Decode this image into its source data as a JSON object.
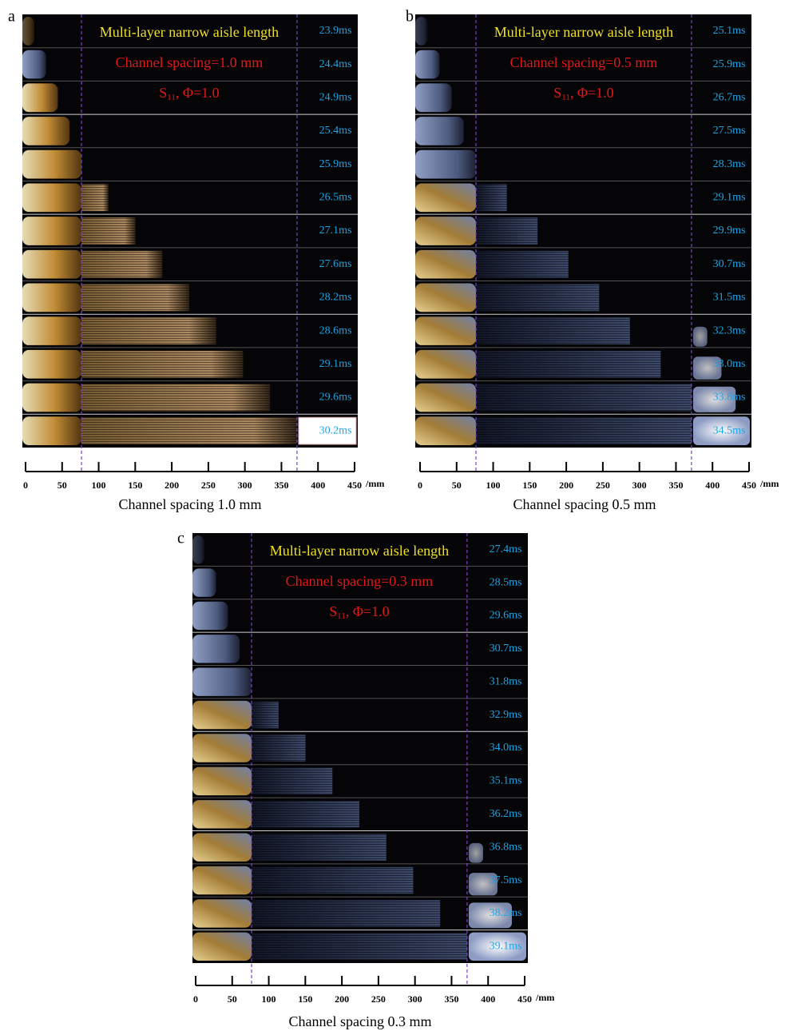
{
  "panels": [
    {
      "label": "a",
      "title": "Multi-layer narrow aisle length",
      "spacing": "Channel spacing=1.0 mm",
      "condition": {
        "symbol": "S",
        "subscript": "11",
        "rest": ", Φ=1.0"
      },
      "times": [
        "23.9ms",
        "24.4ms",
        "24.9ms",
        "25.4ms",
        "25.9ms",
        "26.5ms",
        "27.1ms",
        "27.6ms",
        "28.2ms",
        "28.6ms",
        "29.1ms",
        "29.6ms",
        "30.2ms"
      ],
      "axis": {
        "ticks": [
          0,
          50,
          100,
          150,
          200,
          250,
          300,
          350,
          400,
          450
        ],
        "unit": "/mm"
      },
      "caption": "Channel spacing 1.0 mm"
    },
    {
      "label": "b",
      "title": "Multi-layer narrow aisle length",
      "spacing": "Channel spacing=0.5 mm",
      "condition": {
        "symbol": "S",
        "subscript": "11",
        "rest": ", Φ=1.0"
      },
      "times": [
        "25.1ms",
        "25.9ms",
        "26.7ms",
        "27.5ms",
        "28.3ms",
        "29.1ms",
        "29.9ms",
        "30.7ms",
        "31.5ms",
        "32.3ms",
        "33.0ms",
        "33.8ms",
        "34.5ms"
      ],
      "axis": {
        "ticks": [
          0,
          50,
          100,
          150,
          200,
          250,
          300,
          350,
          400,
          450
        ],
        "unit": "/mm"
      },
      "caption": "Channel spacing 0.5 mm"
    },
    {
      "label": "c",
      "title": "Multi-layer narrow aisle length",
      "spacing": "Channel spacing=0.3 mm",
      "condition": {
        "symbol": "S",
        "subscript": "11",
        "rest": ", Φ=1.0"
      },
      "times": [
        "27.4ms",
        "28.5ms",
        "29.6ms",
        "30.7ms",
        "31.8ms",
        "32.9ms",
        "34.0ms",
        "35.1ms",
        "36.2ms",
        "36.8ms",
        "37.5ms",
        "38.2ms",
        "39.1ms"
      ],
      "axis": {
        "ticks": [
          0,
          50,
          100,
          150,
          200,
          250,
          300,
          350,
          400,
          450
        ],
        "unit": "/mm"
      },
      "caption": "Channel spacing 0.3 mm"
    }
  ]
}
